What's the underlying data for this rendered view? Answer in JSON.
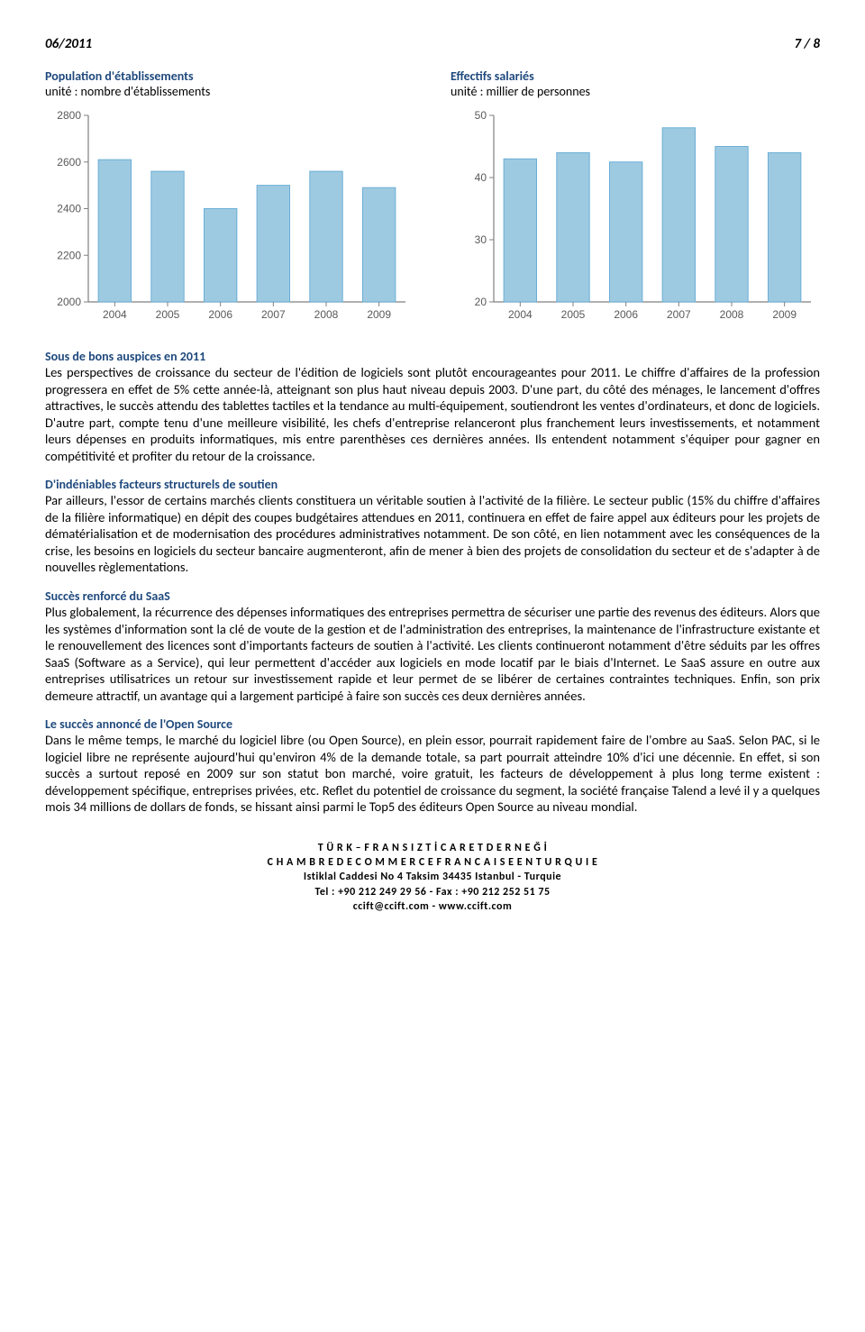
{
  "header": {
    "date": "06/2011",
    "page": "7 / 8"
  },
  "left_col": {
    "title": "Population d'établissements",
    "sub": "unité : nombre d'établissements"
  },
  "right_col": {
    "title": "Effectifs salariés",
    "sub": "unité : millier de personnes"
  },
  "chart_left": {
    "type": "bar",
    "categories": [
      "2004",
      "2005",
      "2006",
      "2007",
      "2008",
      "2009"
    ],
    "values": [
      2610,
      2560,
      2400,
      2500,
      2560,
      2490
    ],
    "ylim": [
      2000,
      2800
    ],
    "ytick_step": 200,
    "bar_color": "#9ecae1",
    "bar_border": "#6baed6",
    "axis_color": "#808080",
    "tick_font": 12,
    "background": "#ffffff",
    "bar_width": 0.62
  },
  "chart_right": {
    "type": "bar",
    "categories": [
      "2004",
      "2005",
      "2006",
      "2007",
      "2008",
      "2009"
    ],
    "values": [
      43,
      44,
      42.5,
      48,
      45,
      44
    ],
    "ylim": [
      20,
      50
    ],
    "ytick_step": 10,
    "bar_color": "#9ecae1",
    "bar_border": "#6baed6",
    "axis_color": "#808080",
    "tick_font": 12,
    "background": "#ffffff",
    "bar_width": 0.62
  },
  "sections": {
    "s1_title": "Sous de bons auspices en 2011",
    "s1_body": "Les perspectives de croissance du secteur de l'édition de logiciels sont plutôt encourageantes pour 2011. Le chiffre d'affaires de la profession progressera en effet de 5% cette année-là, atteignant son plus haut niveau depuis 2003. D'une part, du côté des ménages, le lancement d'offres attractives, le succès attendu des tablettes tactiles et la tendance au multi-équipement, soutiendront les ventes d'ordinateurs, et donc de logiciels. D'autre part, compte tenu d'une meilleure visibilité, les chefs d'entreprise relanceront plus franchement leurs investissements, et notamment leurs dépenses en produits informatiques, mis entre parenthèses ces dernières années. Ils entendent notamment s'équiper pour gagner en compétitivité et profiter du retour de la croissance.",
    "s2_title": "D'indéniables facteurs structurels de soutien",
    "s2_body": "Par ailleurs, l'essor de certains marchés clients constituera un véritable soutien à l'activité de la filière. Le secteur public (15% du chiffre d'affaires de la filière informatique) en dépit des coupes budgétaires attendues en 2011, continuera en effet de faire appel aux éditeurs pour les projets de dématérialisation et de modernisation des procédures administratives notamment. De son côté, en lien notamment avec les conséquences de la crise, les besoins en logiciels du secteur bancaire augmenteront, afin de mener à bien des projets de consolidation du secteur et de s'adapter à de nouvelles règlementations.",
    "s3_title": "Succès renforcé du SaaS",
    "s3_body": "Plus globalement, la récurrence des dépenses informatiques des entreprises permettra de sécuriser une partie des revenus des éditeurs. Alors que les systèmes d'information sont la clé de voute de la gestion et de l'administration des entreprises, la maintenance de l'infrastructure existante et le renouvellement des licences sont d'importants facteurs de soutien à l'activité. Les clients continueront notamment d'être séduits par les offres SaaS (Software as a Service), qui leur permettent d'accéder aux logiciels en mode locatif par le biais d'Internet. Le SaaS assure en outre aux entreprises utilisatrices un retour sur investissement rapide et leur permet de se libérer de certaines contraintes techniques. Enfin, son prix demeure attractif, un avantage qui a largement participé à faire son succès ces deux dernières années.",
    "s4_title": "Le succès annoncé de l'Open Source",
    "s4_body": "Dans le même temps, le marché du logiciel libre (ou Open Source), en plein essor, pourrait rapidement faire de l'ombre au SaaS. Selon PAC, si le logiciel libre ne représente aujourd'hui qu'environ 4% de la demande totale, sa part pourrait atteindre 10% d'ici une décennie. En effet, si son succès a surtout reposé en 2009 sur son statut bon marché, voire gratuit, les facteurs de développement à plus long terme existent : développement spécifique, entreprises privées, etc. Reflet du potentiel de croissance du segment, la société française Talend a levé il y a quelques mois 34 millions de dollars de fonds, se hissant ainsi parmi le Top5 des éditeurs Open Source au niveau mondial."
  },
  "footer": {
    "l1": "T Ü R K – F R A N S I Z   T İ C A R E T   D E R N E Ğ İ",
    "l2": "C H A M B R E   D E   C O M M E R C E   F R A N C A I S E   E N   T U R Q U I E",
    "l3": "Istiklal Caddesi No 4 Taksim 34435 Istanbul - Turquie",
    "l4": "Tel : +90 212 249 29 56 - Fax : +90 212 252 51 75",
    "l5": "ccift@ccift.com - www.ccift.com"
  }
}
